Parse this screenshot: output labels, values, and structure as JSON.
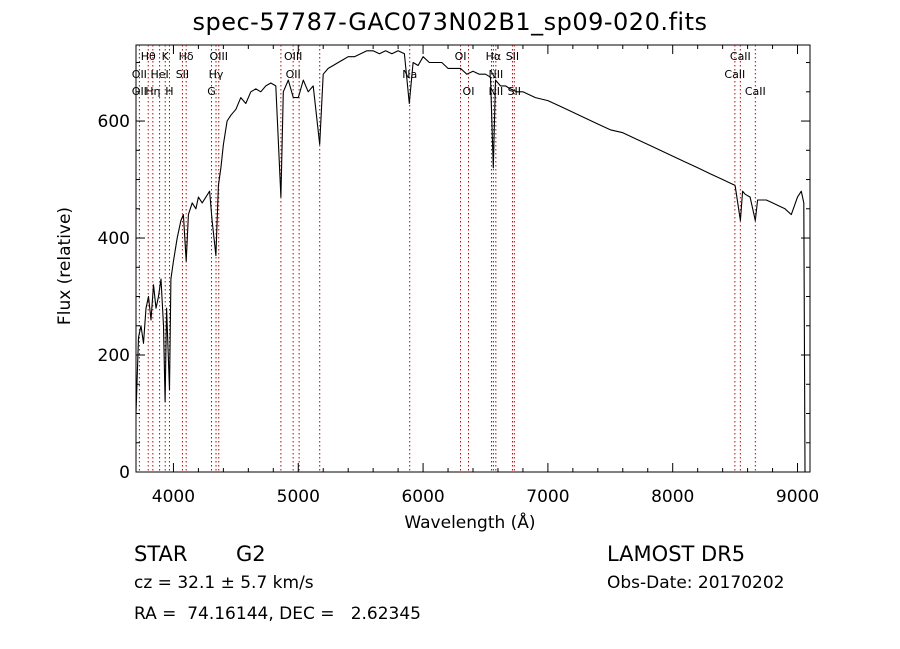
{
  "chart_data": {
    "type": "line",
    "title": "spec-57787-GAC073N02B1_sp09-020.fits",
    "xlabel": "Wavelength (Å)",
    "ylabel": "Flux (relative)",
    "xlim": [
      3700,
      9100
    ],
    "ylim": [
      0,
      730
    ],
    "x_ticks": [
      4000,
      5000,
      6000,
      7000,
      8000,
      9000
    ],
    "y_ticks": [
      0,
      200,
      400,
      600
    ],
    "grid": false,
    "series": [
      {
        "color": "#000000",
        "x": [
          3700,
          3720,
          3740,
          3760,
          3780,
          3800,
          3820,
          3840,
          3860,
          3880,
          3900,
          3920,
          3933,
          3945,
          3968,
          3980,
          4000,
          4030,
          4060,
          4080,
          4102,
          4120,
          4150,
          4180,
          4200,
          4230,
          4260,
          4290,
          4310,
          4340,
          4360,
          4380,
          4400,
          4430,
          4460,
          4500,
          4540,
          4580,
          4620,
          4660,
          4700,
          4740,
          4780,
          4820,
          4861,
          4880,
          4920,
          4960,
          5000,
          5040,
          5080,
          5120,
          5172,
          5200,
          5240,
          5280,
          5320,
          5360,
          5400,
          5450,
          5500,
          5550,
          5600,
          5650,
          5700,
          5750,
          5800,
          5850,
          5890,
          5920,
          5960,
          6000,
          6050,
          6100,
          6150,
          6200,
          6250,
          6300,
          6350,
          6400,
          6450,
          6500,
          6540,
          6563,
          6580,
          6620,
          6660,
          6700,
          6750,
          6800,
          6900,
          7000,
          7100,
          7200,
          7300,
          7400,
          7500,
          7600,
          7700,
          7800,
          7900,
          8000,
          8100,
          8200,
          8300,
          8400,
          8450,
          8500,
          8542,
          8560,
          8580,
          8620,
          8662,
          8680,
          8700,
          8750,
          8800,
          8850,
          8900,
          8950,
          9000,
          9030,
          9050,
          9060
        ],
        "y": [
          100,
          230,
          250,
          220,
          280,
          300,
          260,
          320,
          280,
          300,
          330,
          250,
          120,
          280,
          140,
          330,
          360,
          400,
          430,
          440,
          360,
          440,
          460,
          450,
          470,
          460,
          470,
          480,
          430,
          370,
          490,
          520,
          560,
          600,
          610,
          620,
          640,
          630,
          650,
          655,
          650,
          660,
          665,
          660,
          470,
          650,
          670,
          640,
          640,
          670,
          650,
          660,
          560,
          680,
          690,
          695,
          700,
          705,
          710,
          710,
          715,
          720,
          720,
          715,
          720,
          715,
          720,
          715,
          630,
          700,
          695,
          710,
          700,
          700,
          700,
          690,
          690,
          690,
          680,
          685,
          680,
          680,
          675,
          520,
          670,
          660,
          660,
          655,
          650,
          650,
          640,
          635,
          625,
          615,
          605,
          595,
          585,
          580,
          570,
          560,
          550,
          540,
          530,
          520,
          510,
          500,
          495,
          490,
          430,
          480,
          475,
          470,
          430,
          465,
          465,
          465,
          460,
          455,
          450,
          440,
          470,
          480,
          460,
          0
        ]
      }
    ],
    "line_markers": [
      {
        "label": "Hθ",
        "x": 3798,
        "row": 1
      },
      {
        "label": "OII",
        "x": 3727,
        "row": 2
      },
      {
        "label": "OII",
        "x": 3727,
        "row": 3
      },
      {
        "label": "K",
        "x": 3934,
        "row": 1
      },
      {
        "label": "HeI",
        "x": 3889,
        "row": 2
      },
      {
        "label": "Hη",
        "x": 3835,
        "row": 3
      },
      {
        "label": "H",
        "x": 3968,
        "row": 3
      },
      {
        "label": "Hδ",
        "x": 4102,
        "row": 1
      },
      {
        "label": "SII",
        "x": 4072,
        "row": 2
      },
      {
        "label": "OIII",
        "x": 4363,
        "row": 1
      },
      {
        "label": "Hγ",
        "x": 4341,
        "row": 2
      },
      {
        "label": "G",
        "x": 4305,
        "row": 3
      },
      {
        "label": "OIII",
        "x": 4959,
        "row": 1
      },
      {
        "label": "OII",
        "x": 4959,
        "row": 2
      },
      {
        "label": "Na",
        "x": 5893,
        "row": 2
      },
      {
        "label": "OI",
        "x": 6300,
        "row": 1
      },
      {
        "label": "OI",
        "x": 6364,
        "row": 3
      },
      {
        "label": "Hα",
        "x": 6563,
        "row": 1
      },
      {
        "label": "SII",
        "x": 6716,
        "row": 1
      },
      {
        "label": "NII",
        "x": 6583,
        "row": 2
      },
      {
        "label": "NII",
        "x": 6583,
        "row": 3
      },
      {
        "label": "SII",
        "x": 6731,
        "row": 3
      },
      {
        "label": "CaII",
        "x": 8542,
        "row": 1
      },
      {
        "label": "CaII",
        "x": 8498,
        "row": 2
      },
      {
        "label": "CaII",
        "x": 8662,
        "row": 3
      }
    ],
    "marker_lines_x": [
      3727,
      3798,
      3835,
      3889,
      3934,
      3968,
      4072,
      4102,
      4305,
      4341,
      4363,
      4861,
      4959,
      5007,
      5172,
      5893,
      6300,
      6364,
      6548,
      6563,
      6583,
      6716,
      6731,
      8498,
      8542,
      8662
    ],
    "marker_color": "#c00000"
  },
  "info": {
    "object_class": "STAR",
    "subclass": "G2",
    "survey": "LAMOST DR5",
    "redshift": "cz = 32.1 ± 5.7 km/s",
    "obs_date": "Obs-Date: 20170202",
    "coords": "RA =  74.16144, DEC =   2.62345"
  }
}
